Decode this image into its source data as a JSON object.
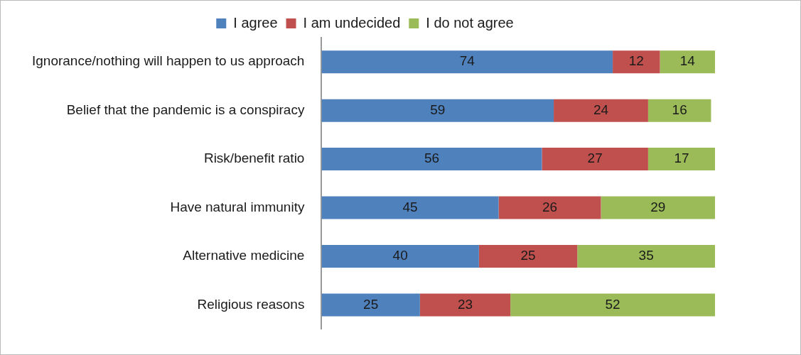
{
  "chart_data": {
    "type": "bar",
    "orientation": "horizontal",
    "stacked": true,
    "data_labels": true,
    "legend": "top",
    "grid": false,
    "categories": [
      "Ignorance/nothing will happen to us approach",
      "Belief that the pandemic is a conspiracy",
      "Risk/benefit ratio",
      "Have natural immunity",
      "Alternative medicine",
      "Religious reasons"
    ],
    "series": [
      {
        "name": "I agree",
        "color": "#4f81bd",
        "values": [
          74,
          59,
          56,
          45,
          40,
          25
        ]
      },
      {
        "name": "I am undecided",
        "color": "#c0504d",
        "values": [
          12,
          24,
          27,
          26,
          25,
          23
        ]
      },
      {
        "name": "I do not agree",
        "color": "#9bbb59",
        "values": [
          14,
          16,
          17,
          29,
          35,
          52
        ]
      }
    ]
  }
}
